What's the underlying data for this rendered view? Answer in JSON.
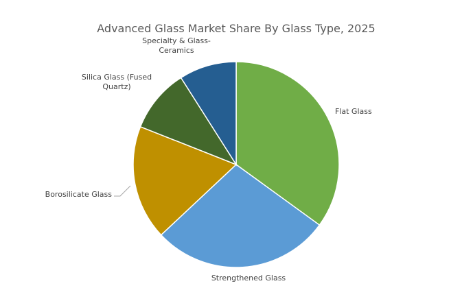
{
  "chart_data": {
    "type": "pie",
    "title": "Advanced Glass Market Share By Glass Type, 2025",
    "slices": [
      {
        "label": "Flat Glass",
        "label_lines": [
          "Flat Glass"
        ],
        "value": 35,
        "color": "#70ad47"
      },
      {
        "label": "Strengthened Glass",
        "label_lines": [
          "Strengthened Glass"
        ],
        "value": 28,
        "color": "#5b9bd5"
      },
      {
        "label": "Borosilicate Glass",
        "label_lines": [
          "Borosilicate Glass"
        ],
        "value": 18,
        "color": "#bf9000"
      },
      {
        "label": "Silica Glass (Fused Quartz)",
        "label_lines": [
          "Silica Glass (Fused",
          "Quartz)"
        ],
        "value": 10,
        "color": "#43682b"
      },
      {
        "label": "Specialty & Glass-Ceramics",
        "label_lines": [
          "Specialty & Glass-",
          "Ceramics"
        ],
        "value": 9,
        "color": "#255e91"
      }
    ],
    "start_angle_deg": 0,
    "direction": "clockwise",
    "legend": "none"
  }
}
